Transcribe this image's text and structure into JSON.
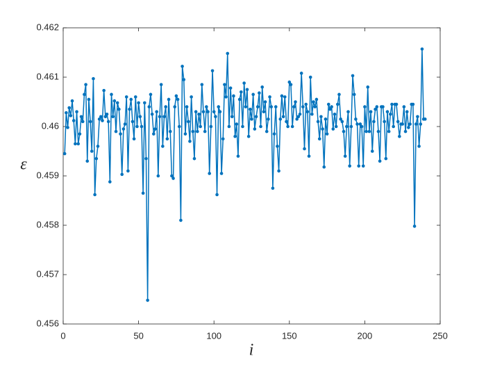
{
  "chart_data": {
    "type": "line",
    "xlabel": "i",
    "ylabel": "ε",
    "color": "#0072bd",
    "xlim": [
      0,
      250
    ],
    "xticks": [
      0,
      50,
      100,
      150,
      200,
      250
    ],
    "ylim": [
      0.456,
      0.462
    ],
    "yticks": [
      0.456,
      0.457,
      0.458,
      0.459,
      0.46,
      0.461,
      0.462
    ],
    "x": [
      1,
      2,
      3,
      4,
      5,
      6,
      7,
      8,
      9,
      10,
      11,
      12,
      13,
      14,
      15,
      16,
      17,
      18,
      19,
      20,
      21,
      22,
      23,
      24,
      25,
      26,
      27,
      28,
      29,
      30,
      31,
      32,
      33,
      34,
      35,
      36,
      37,
      38,
      39,
      40,
      41,
      42,
      43,
      44,
      45,
      46,
      47,
      48,
      49,
      50,
      51,
      52,
      53,
      54,
      55,
      56,
      57,
      58,
      59,
      60,
      61,
      62,
      63,
      64,
      65,
      66,
      67,
      68,
      69,
      70,
      71,
      72,
      73,
      74,
      75,
      76,
      77,
      78,
      79,
      80,
      81,
      82,
      83,
      84,
      85,
      86,
      87,
      88,
      89,
      90,
      91,
      92,
      93,
      94,
      95,
      96,
      97,
      98,
      99,
      100,
      101,
      102,
      103,
      104,
      105,
      106,
      107,
      108,
      109,
      110,
      111,
      112,
      113,
      114,
      115,
      116,
      117,
      118,
      119,
      120,
      121,
      122,
      123,
      124,
      125,
      126,
      127,
      128,
      129,
      130,
      131,
      132,
      133,
      134,
      135,
      136,
      137,
      138,
      139,
      140,
      141,
      142,
      143,
      144,
      145,
      146,
      147,
      148,
      149,
      150,
      151,
      152,
      153,
      154,
      155,
      156,
      157,
      158,
      159,
      160,
      161,
      162,
      163,
      164,
      165,
      166,
      167,
      168,
      169,
      170,
      171,
      172,
      173,
      174,
      175,
      176,
      177,
      178,
      179,
      180,
      181,
      182,
      183,
      184,
      185,
      186,
      187,
      188,
      189,
      190,
      191,
      192,
      193,
      194,
      195,
      196,
      197,
      198,
      199,
      200,
      201,
      202,
      203,
      204,
      205,
      206,
      207,
      208,
      209,
      210,
      211,
      212,
      213,
      214,
      215,
      216,
      217,
      218,
      219,
      220,
      221,
      222,
      223,
      224,
      225,
      226,
      227,
      228,
      229,
      230,
      231,
      232,
      233,
      234,
      235,
      236,
      237,
      238,
      239,
      240
    ],
    "values": [
      0.45945,
      0.46028,
      0.45998,
      0.46038,
      0.46022,
      0.46052,
      0.46012,
      0.45965,
      0.4603,
      0.45965,
      0.45985,
      0.4602,
      0.4601,
      0.46065,
      0.46085,
      0.4593,
      0.46055,
      0.4601,
      0.4595,
      0.46097,
      0.45862,
      0.45935,
      0.4596,
      0.46015,
      0.4602,
      0.46012,
      0.46073,
      0.4602,
      0.46025,
      0.4601,
      0.45888,
      0.46065,
      0.4602,
      0.46052,
      0.4599,
      0.46048,
      0.46035,
      0.45985,
      0.45903,
      0.45995,
      0.46005,
      0.4606,
      0.4591,
      0.46035,
      0.46055,
      0.4601,
      0.45975,
      0.4606,
      0.46,
      0.46048,
      0.4602,
      0.46,
      0.45865,
      0.46048,
      0.45935,
      0.45648,
      0.4604,
      0.46065,
      0.46025,
      0.45985,
      0.45995,
      0.4603,
      0.459,
      0.4602,
      0.46085,
      0.4596,
      0.4602,
      0.4604,
      0.45975,
      0.46055,
      0.4599,
      0.459,
      0.45895,
      0.4604,
      0.46062,
      0.46055,
      0.46,
      0.4581,
      0.46122,
      0.46095,
      0.45985,
      0.4604,
      0.4601,
      0.4597,
      0.4606,
      0.4599,
      0.45935,
      0.4603,
      0.4599,
      0.46025,
      0.46,
      0.46085,
      0.4603,
      0.4599,
      0.4604,
      0.4603,
      0.45905,
      0.46,
      0.46113,
      0.4603,
      0.4602,
      0.45862,
      0.4604,
      0.4603,
      0.45905,
      0.45975,
      0.46085,
      0.4606,
      0.46148,
      0.46,
      0.46078,
      0.4602,
      0.46062,
      0.4598,
      0.46005,
      0.4594,
      0.46055,
      0.4607,
      0.46,
      0.46088,
      0.4604,
      0.46075,
      0.4598,
      0.46035,
      0.46015,
      0.46065,
      0.45995,
      0.4602,
      0.4604,
      0.46068,
      0.46,
      0.4608,
      0.4603,
      0.4605,
      0.4599,
      0.46015,
      0.4606,
      0.4604,
      0.45875,
      0.45985,
      0.4604,
      0.4596,
      0.4591,
      0.46015,
      0.46062,
      0.4602,
      0.4606,
      0.4601,
      0.46,
      0.4609,
      0.46085,
      0.46,
      0.4604,
      0.4605,
      0.46015,
      0.4602,
      0.46025,
      0.46108,
      0.4604,
      0.45955,
      0.46045,
      0.4603,
      0.4594,
      0.461,
      0.46025,
      0.4605,
      0.4604,
      0.46055,
      0.4601,
      0.45975,
      0.4602,
      0.45995,
      0.45918,
      0.46015,
      0.45985,
      0.46045,
      0.46035,
      0.4604,
      0.45995,
      0.46025,
      0.46,
      0.46045,
      0.46065,
      0.46015,
      0.4601,
      0.4599,
      0.4594,
      0.46,
      0.4603,
      0.4592,
      0.46,
      0.46103,
      0.46065,
      0.46015,
      0.46005,
      0.4592,
      0.46005,
      0.46,
      0.4592,
      0.4604,
      0.4599,
      0.4608,
      0.4599,
      0.4603,
      0.4595,
      0.4601,
      0.46035,
      0.4604,
      0.4599,
      0.4593,
      0.4604,
      0.4604,
      0.4601,
      0.45935,
      0.4603,
      0.4599,
      0.46025,
      0.46045,
      0.46,
      0.46045,
      0.46045,
      0.4601,
      0.4598,
      0.46005,
      0.46005,
      0.4604,
      0.4599,
      0.4603,
      0.45998,
      0.46005,
      0.46045,
      0.46045,
      0.45798,
      0.46005,
      0.4602,
      0.4596,
      0.46005,
      0.46157,
      0.46015,
      0.46015
    ]
  }
}
